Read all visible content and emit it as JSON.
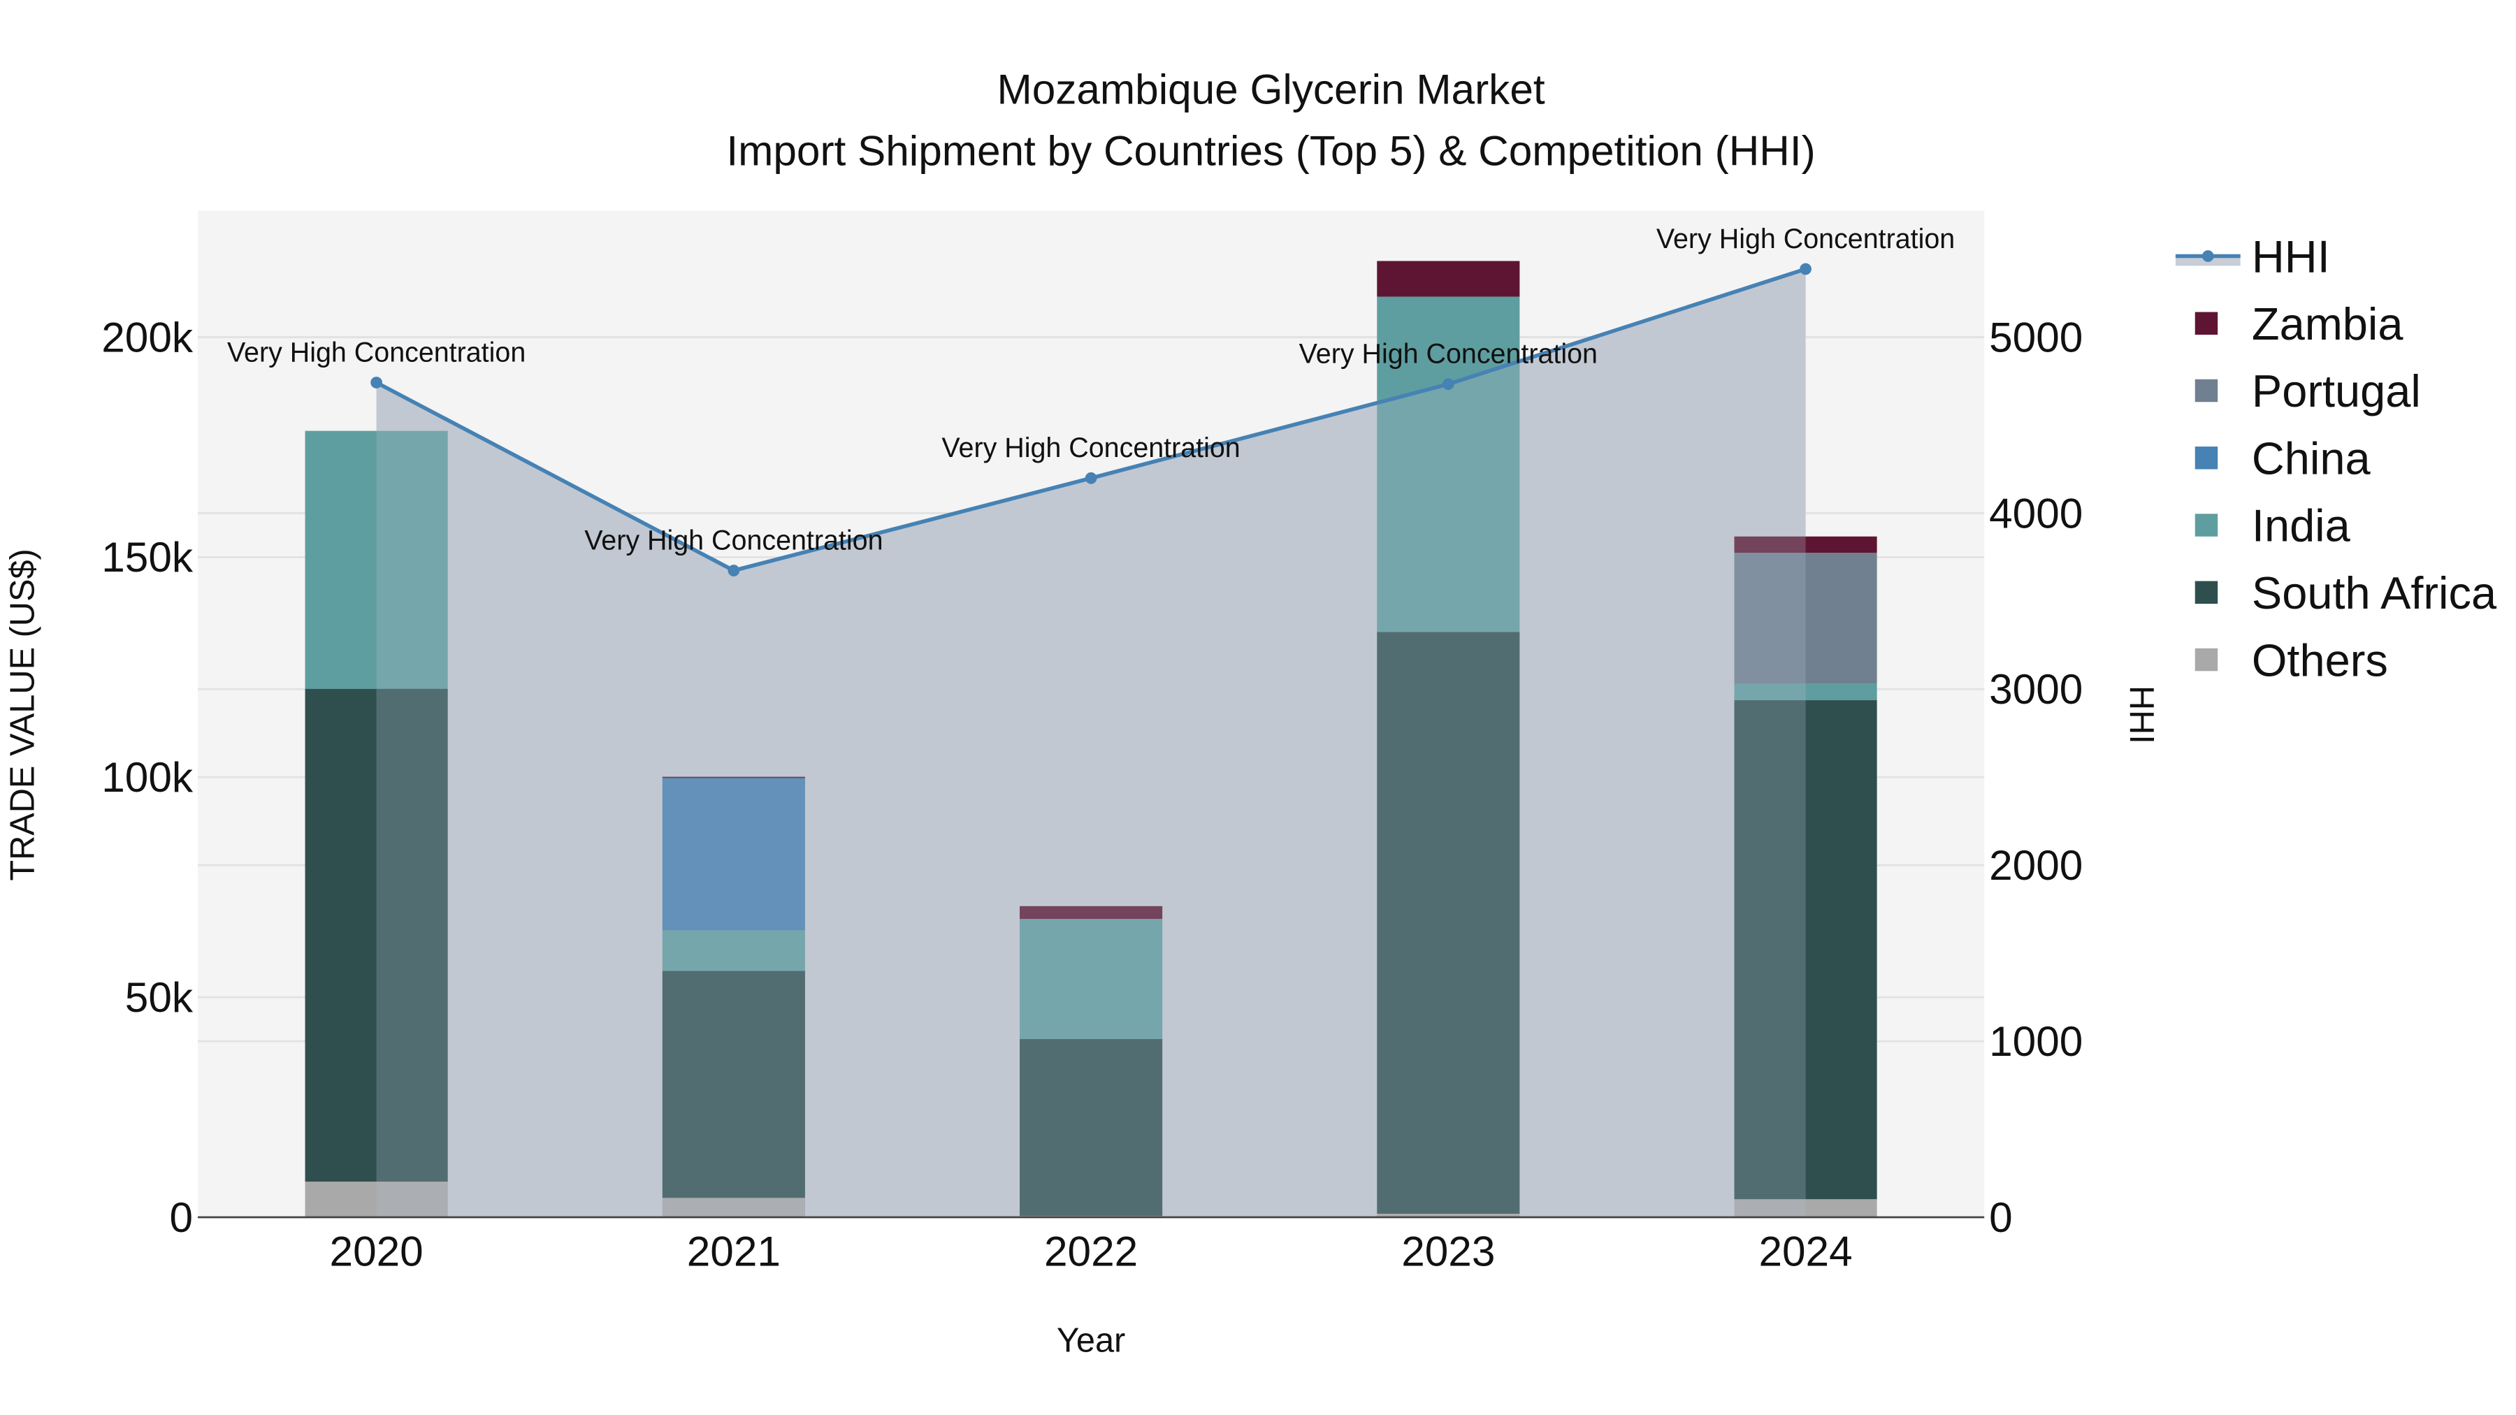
{
  "title": {
    "line1": "Mozambique Glycerin Market",
    "line2": "Import Shipment by Countries (Top 5) & Competition (HHI)"
  },
  "axes": {
    "x_title": "Year",
    "y_left_title": "TRADE VALUE (US$)",
    "y_right_title": "HHI",
    "y_left_ticks": [
      {
        "value": 0,
        "label": "0"
      },
      {
        "value": 50000,
        "label": "50k"
      },
      {
        "value": 100000,
        "label": "100k"
      },
      {
        "value": 150000,
        "label": "150k"
      },
      {
        "value": 200000,
        "label": "200k"
      }
    ],
    "y_right_ticks": [
      {
        "value": 0,
        "label": "0"
      },
      {
        "value": 1000,
        "label": "1000"
      },
      {
        "value": 2000,
        "label": "2000"
      },
      {
        "value": 3000,
        "label": "3000"
      },
      {
        "value": 4000,
        "label": "4000"
      },
      {
        "value": 5000,
        "label": "5000"
      }
    ]
  },
  "legend": {
    "items": [
      {
        "label": "HHI",
        "type": "line",
        "color": "#4682b4"
      },
      {
        "label": "Zambia",
        "type": "box",
        "color": "#5e1533"
      },
      {
        "label": "Portugal",
        "type": "box",
        "color": "#708090"
      },
      {
        "label": "China",
        "type": "box",
        "color": "#4682b4"
      },
      {
        "label": "India",
        "type": "box",
        "color": "#5f9ea0"
      },
      {
        "label": "South Africa",
        "type": "box",
        "color": "#2f4f4f"
      },
      {
        "label": "Others",
        "type": "box",
        "color": "#a9a9a9"
      }
    ]
  },
  "colors": {
    "plot_bg": "#f4f4f4",
    "grid": "#e2e2e2",
    "hhi_line": "#4682b4",
    "hhi_fill": "rgba(176,186,201,0.6)",
    "axis_line": "#444444"
  },
  "chart_data": {
    "type": "bar",
    "subtype": "stacked bar with line overlay (secondary axis)",
    "title": "Mozambique Glycerin Market — Import Shipment by Countries (Top 5) & Competition (HHI)",
    "xlabel": "Year",
    "ylabel": "TRADE VALUE (US$)",
    "y2label": "HHI",
    "categories": [
      "2020",
      "2021",
      "2022",
      "2023",
      "2024"
    ],
    "ylim": [
      0,
      228000
    ],
    "y2lim": [
      0,
      5700
    ],
    "grid": true,
    "legend_position": "right",
    "series": [
      {
        "name": "Others",
        "color": "#a9a9a9",
        "values": [
          8100,
          4400,
          300,
          800,
          4100
        ]
      },
      {
        "name": "South Africa",
        "color": "#2f4f4f",
        "values": [
          112000,
          51600,
          40200,
          132200,
          113400
        ]
      },
      {
        "name": "India",
        "color": "#5f9ea0",
        "values": [
          58600,
          9200,
          27300,
          76200,
          3700
        ]
      },
      {
        "name": "China",
        "color": "#4682b4",
        "values": [
          0,
          34600,
          0,
          0,
          0
        ]
      },
      {
        "name": "Portugal",
        "color": "#708090",
        "values": [
          0,
          0,
          0,
          0,
          29800
        ]
      },
      {
        "name": "Zambia",
        "color": "#5e1533",
        "values": [
          0,
          300,
          2900,
          8100,
          3700
        ]
      }
    ],
    "line_series": {
      "name": "HHI",
      "axis": "right",
      "color": "#4682b4",
      "values": [
        4742,
        3674,
        4199,
        4733,
        5387
      ],
      "annotations": [
        "Very High Concentration",
        "Very High Concentration",
        "Very High Concentration",
        "Very High Concentration",
        "Very High Concentration"
      ]
    }
  }
}
